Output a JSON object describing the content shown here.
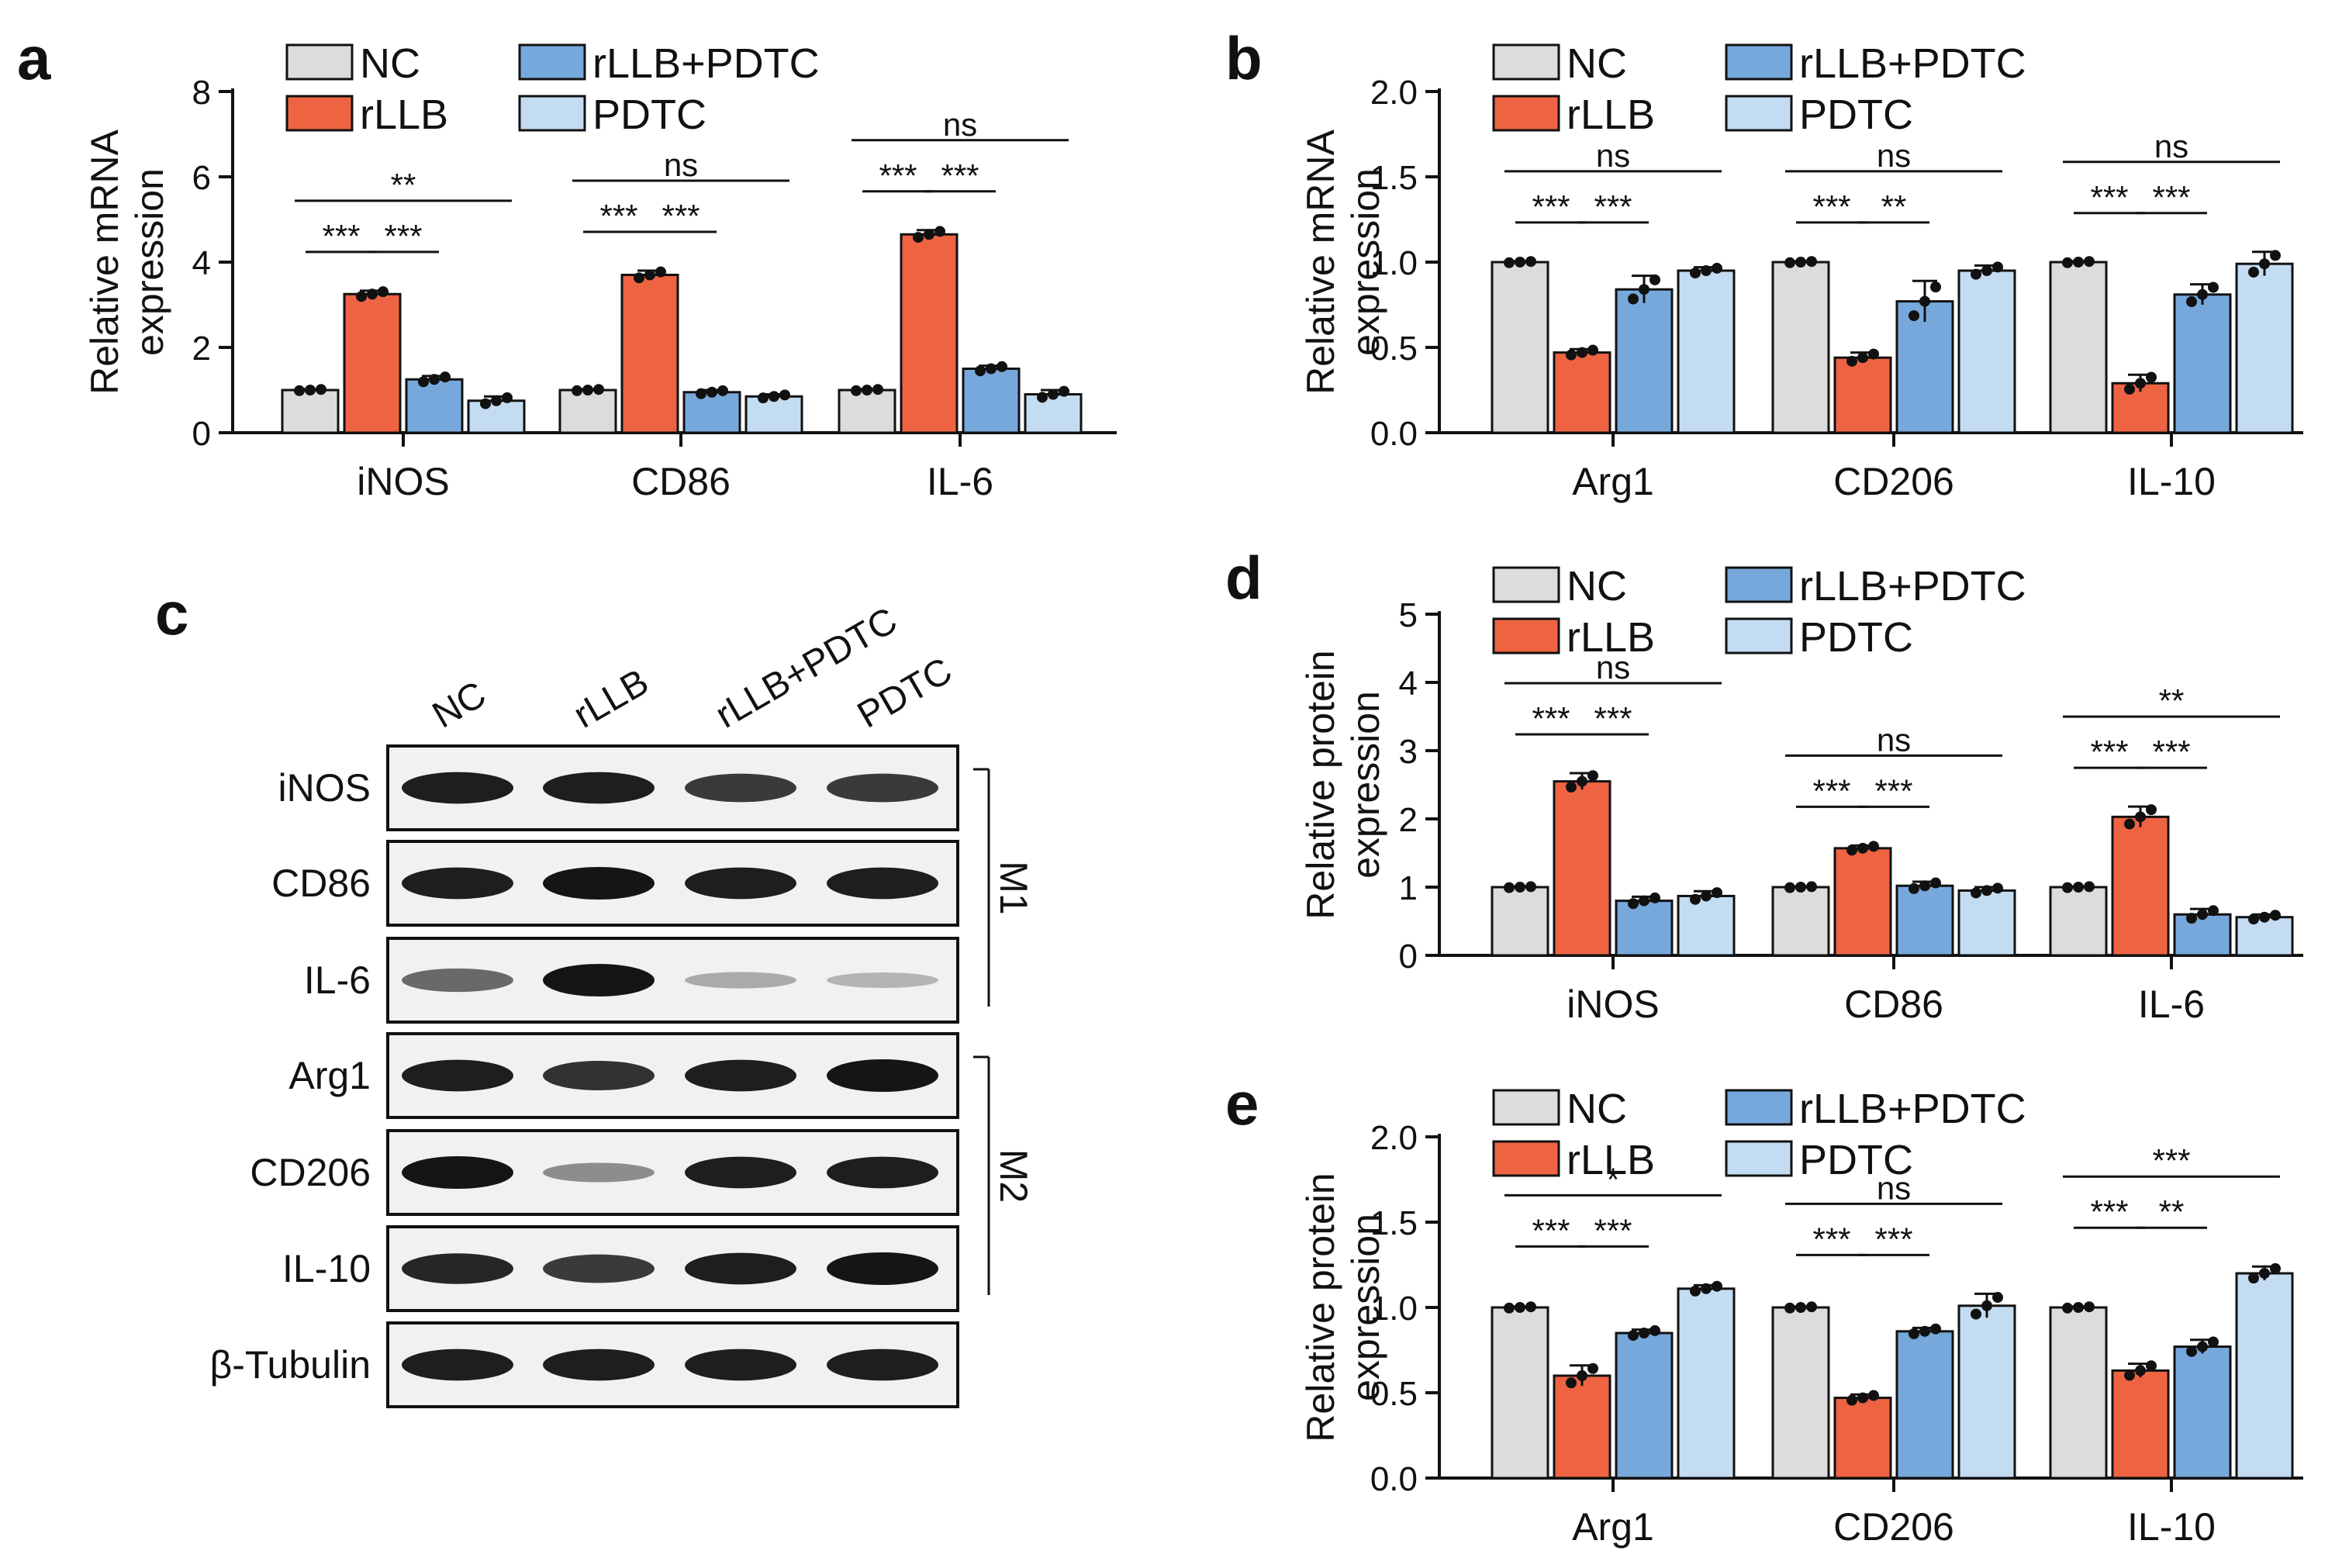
{
  "colors": {
    "NC": "#dcdcdc",
    "rLLB": "#ee6443",
    "rLLB+PDTC": "#77a8dc",
    "PDTC": "#c4dcf2",
    "band": "#151515",
    "bg": "#ffffff"
  },
  "legend": [
    "NC",
    "rLLB",
    "rLLB+PDTC",
    "PDTC"
  ],
  "chart_data": [
    {
      "panel": "a",
      "type": "bar",
      "ylabel": [
        "Relative mRNA",
        "expression"
      ],
      "ylim": [
        0,
        8
      ],
      "yticks": [
        "0",
        "2",
        "4",
        "6",
        "8"
      ],
      "categories": [
        "iNOS",
        "CD86",
        "IL-6"
      ],
      "series": [
        {
          "name": "NC",
          "values": [
            1.0,
            1.0,
            1.0
          ],
          "errors": [
            0.02,
            0.02,
            0.02
          ]
        },
        {
          "name": "rLLB",
          "values": [
            3.25,
            3.7,
            4.65
          ],
          "errors": [
            0.08,
            0.1,
            0.1
          ]
        },
        {
          "name": "rLLB+PDTC",
          "values": [
            1.25,
            0.95,
            1.5
          ],
          "errors": [
            0.08,
            0.05,
            0.07
          ]
        },
        {
          "name": "PDTC",
          "values": [
            0.75,
            0.85,
            0.9
          ],
          "errors": [
            0.1,
            0.05,
            0.1
          ]
        }
      ],
      "significance": [
        {
          "cat": 0,
          "items": [
            {
              "label": "***",
              "from": 0,
              "to": 1,
              "level": 1
            },
            {
              "label": "***",
              "from": 1,
              "to": 2,
              "level": 1
            },
            {
              "label": "**",
              "from": 0,
              "to": 3,
              "level": 2
            }
          ]
        },
        {
          "cat": 1,
          "items": [
            {
              "label": "***",
              "from": 0,
              "to": 1,
              "level": 1
            },
            {
              "label": "***",
              "from": 1,
              "to": 2,
              "level": 1
            },
            {
              "label": "ns",
              "from": 0,
              "to": 3,
              "level": 2
            }
          ]
        },
        {
          "cat": 2,
          "items": [
            {
              "label": "***",
              "from": 0,
              "to": 1,
              "level": 1
            },
            {
              "label": "***",
              "from": 1,
              "to": 2,
              "level": 1
            },
            {
              "label": "ns",
              "from": 0,
              "to": 3,
              "level": 2
            }
          ]
        }
      ]
    },
    {
      "panel": "b",
      "type": "bar",
      "ylabel": [
        "Relative mRNA",
        "expression"
      ],
      "ylim": [
        0,
        2
      ],
      "yticks": [
        "0.0",
        "0.5",
        "1.0",
        "1.5",
        "2.0"
      ],
      "categories": [
        "Arg1",
        "CD206",
        "IL-10"
      ],
      "series": [
        {
          "name": "NC",
          "values": [
            1.0,
            1.0,
            1.0
          ],
          "errors": [
            0.005,
            0.005,
            0.005
          ]
        },
        {
          "name": "rLLB",
          "values": [
            0.47,
            0.44,
            0.29
          ],
          "errors": [
            0.02,
            0.03,
            0.05
          ]
        },
        {
          "name": "rLLB+PDTC",
          "values": [
            0.84,
            0.77,
            0.81
          ],
          "errors": [
            0.08,
            0.12,
            0.06
          ]
        },
        {
          "name": "PDTC",
          "values": [
            0.95,
            0.95,
            0.99
          ],
          "errors": [
            0.02,
            0.03,
            0.07
          ]
        }
      ],
      "significance": [
        {
          "cat": 0,
          "items": [
            {
              "label": "***",
              "from": 0,
              "to": 1,
              "level": 1
            },
            {
              "label": "***",
              "from": 1,
              "to": 2,
              "level": 1
            },
            {
              "label": "ns",
              "from": 0,
              "to": 3,
              "level": 2
            }
          ]
        },
        {
          "cat": 1,
          "items": [
            {
              "label": "***",
              "from": 0,
              "to": 1,
              "level": 1
            },
            {
              "label": "**",
              "from": 1,
              "to": 2,
              "level": 1
            },
            {
              "label": "ns",
              "from": 0,
              "to": 3,
              "level": 2
            }
          ]
        },
        {
          "cat": 2,
          "items": [
            {
              "label": "***",
              "from": 0,
              "to": 1,
              "level": 1
            },
            {
              "label": "***",
              "from": 1,
              "to": 2,
              "level": 1
            },
            {
              "label": "ns",
              "from": 0,
              "to": 3,
              "level": 2
            }
          ]
        }
      ]
    },
    {
      "panel": "d",
      "type": "bar",
      "ylabel": [
        "Relative protein",
        "expression"
      ],
      "ylim": [
        0,
        5
      ],
      "yticks": [
        "0",
        "1",
        "2",
        "3",
        "4",
        "5"
      ],
      "categories": [
        "iNOS",
        "CD86",
        "IL-6"
      ],
      "series": [
        {
          "name": "NC",
          "values": [
            1.0,
            1.0,
            1.0
          ],
          "errors": [
            0.01,
            0.01,
            0.01
          ]
        },
        {
          "name": "rLLB",
          "values": [
            2.55,
            1.57,
            2.03
          ],
          "errors": [
            0.12,
            0.04,
            0.15
          ]
        },
        {
          "name": "rLLB+PDTC",
          "values": [
            0.8,
            1.02,
            0.6
          ],
          "errors": [
            0.06,
            0.06,
            0.08
          ]
        },
        {
          "name": "PDTC",
          "values": [
            0.87,
            0.95,
            0.56
          ],
          "errors": [
            0.07,
            0.05,
            0.04
          ]
        }
      ],
      "significance": [
        {
          "cat": 0,
          "items": [
            {
              "label": "***",
              "from": 0,
              "to": 1,
              "level": 1
            },
            {
              "label": "***",
              "from": 1,
              "to": 2,
              "level": 1
            },
            {
              "label": "ns",
              "from": 0,
              "to": 3,
              "level": 2
            }
          ]
        },
        {
          "cat": 1,
          "items": [
            {
              "label": "***",
              "from": 0,
              "to": 1,
              "level": 1
            },
            {
              "label": "***",
              "from": 1,
              "to": 2,
              "level": 1
            },
            {
              "label": "ns",
              "from": 0,
              "to": 3,
              "level": 2
            }
          ]
        },
        {
          "cat": 2,
          "items": [
            {
              "label": "***",
              "from": 0,
              "to": 1,
              "level": 1
            },
            {
              "label": "***",
              "from": 1,
              "to": 2,
              "level": 1
            },
            {
              "label": "**",
              "from": 0,
              "to": 3,
              "level": 2
            }
          ]
        }
      ]
    },
    {
      "panel": "e",
      "type": "bar",
      "ylabel": [
        "Relative protein",
        "expression"
      ],
      "ylim": [
        0,
        2
      ],
      "yticks": [
        "0.0",
        "0.5",
        "1.0",
        "1.5",
        "2.0"
      ],
      "categories": [
        "Arg1",
        "CD206",
        "IL-10"
      ],
      "series": [
        {
          "name": "NC",
          "values": [
            1.0,
            1.0,
            1.0
          ],
          "errors": [
            0.005,
            0.005,
            0.005
          ]
        },
        {
          "name": "rLLB",
          "values": [
            0.6,
            0.47,
            0.63
          ],
          "errors": [
            0.06,
            0.02,
            0.04
          ]
        },
        {
          "name": "rLLB+PDTC",
          "values": [
            0.85,
            0.86,
            0.77
          ],
          "errors": [
            0.02,
            0.02,
            0.04
          ]
        },
        {
          "name": "PDTC",
          "values": [
            1.11,
            1.01,
            1.2
          ],
          "errors": [
            0.02,
            0.07,
            0.04
          ]
        }
      ],
      "significance": [
        {
          "cat": 0,
          "items": [
            {
              "label": "***",
              "from": 0,
              "to": 1,
              "level": 1
            },
            {
              "label": "***",
              "from": 1,
              "to": 2,
              "level": 1
            },
            {
              "label": "*",
              "from": 0,
              "to": 3,
              "level": 2
            }
          ]
        },
        {
          "cat": 1,
          "items": [
            {
              "label": "***",
              "from": 0,
              "to": 1,
              "level": 1
            },
            {
              "label": "***",
              "from": 1,
              "to": 2,
              "level": 1
            },
            {
              "label": "ns",
              "from": 0,
              "to": 3,
              "level": 2
            }
          ]
        },
        {
          "cat": 2,
          "items": [
            {
              "label": "***",
              "from": 0,
              "to": 1,
              "level": 1
            },
            {
              "label": "**",
              "from": 1,
              "to": 2,
              "level": 1
            },
            {
              "label": "***",
              "from": 0,
              "to": 3,
              "level": 2
            }
          ]
        }
      ]
    }
  ],
  "western": {
    "panel": "c",
    "lanes": [
      "NC",
      "rLLB",
      "rLLB+PDTC",
      "PDTC"
    ],
    "rows": [
      {
        "label": "iNOS",
        "intensity": [
          0.95,
          0.95,
          0.8,
          0.8
        ]
      },
      {
        "label": "CD86",
        "intensity": [
          0.95,
          1.0,
          0.95,
          0.95
        ]
      },
      {
        "label": "IL-6",
        "intensity": [
          0.55,
          1.0,
          0.2,
          0.15
        ]
      },
      {
        "label": "Arg1",
        "intensity": [
          0.95,
          0.85,
          0.95,
          1.0
        ]
      },
      {
        "label": "CD206",
        "intensity": [
          1.0,
          0.35,
          0.95,
          0.95
        ]
      },
      {
        "label": "IL-10",
        "intensity": [
          0.9,
          0.8,
          0.95,
          1.0
        ]
      },
      {
        "label": "β-Tubulin",
        "intensity": [
          0.95,
          0.95,
          0.95,
          0.95
        ]
      }
    ],
    "groups": [
      {
        "label": "M1",
        "rows": [
          0,
          1,
          2
        ]
      },
      {
        "label": "M2",
        "rows": [
          3,
          4,
          5
        ]
      }
    ]
  }
}
